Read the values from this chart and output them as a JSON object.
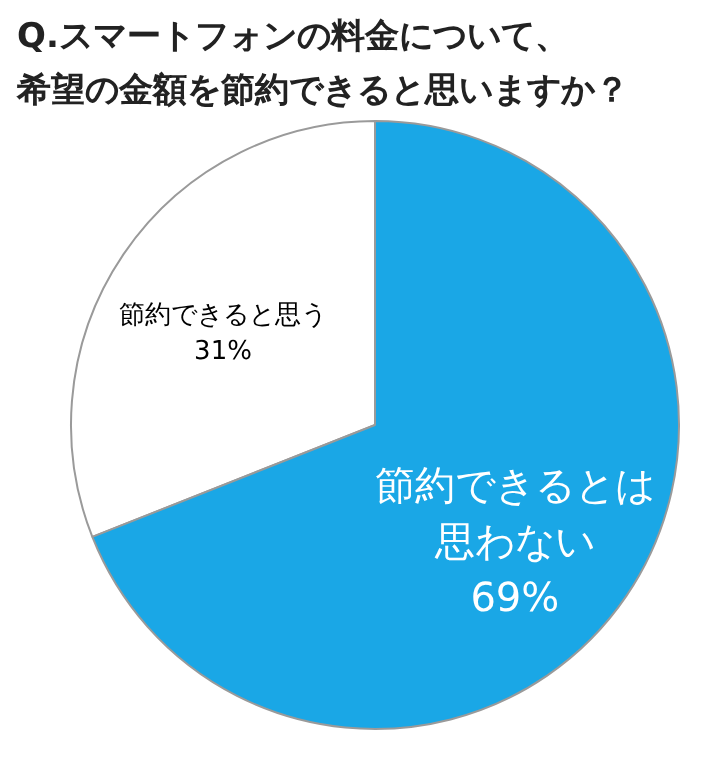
{
  "chart_data": {
    "type": "pie",
    "title": "Q.スマートフォンの料金について、希望の金額を節約できると思いますか？",
    "categories": [
      "節約できると思う",
      "節約できるとは思わない"
    ],
    "values": [
      31,
      69
    ],
    "colors": [
      "#ffffff",
      "#1aa7e6"
    ],
    "value_labels": [
      "31%",
      "69%"
    ]
  }
}
